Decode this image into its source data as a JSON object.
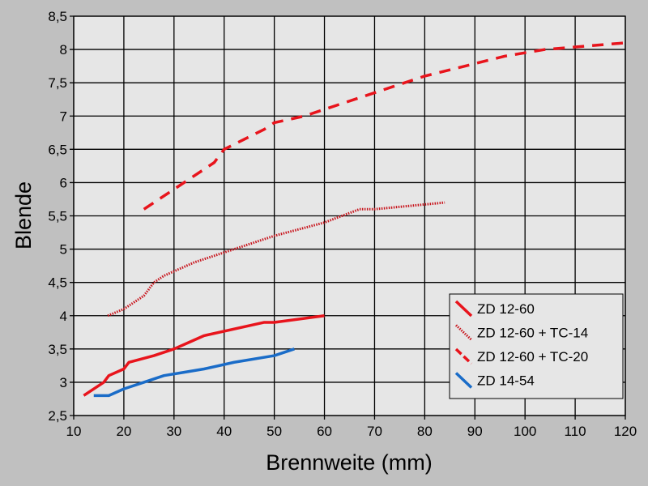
{
  "chart_data": {
    "type": "line",
    "title": "",
    "xlabel": "Brennweite (mm)",
    "ylabel": "Blende",
    "xlim": [
      10,
      120
    ],
    "ylim": [
      2.5,
      8.5
    ],
    "xticks": [
      "10",
      "20",
      "30",
      "40",
      "50",
      "60",
      "70",
      "80",
      "90",
      "100",
      "110",
      "120"
    ],
    "yticks": [
      "2,5",
      "3",
      "3,5",
      "4",
      "4,5",
      "5",
      "5,5",
      "6",
      "6,5",
      "7",
      "7,5",
      "8",
      "8,5"
    ],
    "grid": true,
    "legend_position": "bottom-right",
    "series": [
      {
        "name": "ZD 12-60",
        "color": "#e8141c",
        "style": "solid",
        "x": [
          12,
          16,
          17,
          20,
          21,
          26,
          30,
          33,
          36,
          48,
          50,
          60
        ],
        "y": [
          2.8,
          3.0,
          3.1,
          3.2,
          3.3,
          3.4,
          3.5,
          3.6,
          3.7,
          3.9,
          3.9,
          4.0
        ]
      },
      {
        "name": "ZD 12-60 + TC-14",
        "color": "#c8141c",
        "style": "dotted",
        "x": [
          16.8,
          20,
          24,
          26,
          28,
          31,
          34,
          40,
          42,
          50,
          60,
          67,
          70,
          84
        ],
        "y": [
          4.0,
          4.1,
          4.3,
          4.5,
          4.6,
          4.7,
          4.8,
          4.95,
          5.0,
          5.2,
          5.4,
          5.6,
          5.6,
          5.7
        ]
      },
      {
        "name": "ZD 12-60 + TC-20",
        "color": "#e8141c",
        "style": "dashed",
        "x": [
          24,
          34,
          38,
          40,
          48,
          50,
          56,
          60,
          80,
          96,
          100,
          104,
          120
        ],
        "y": [
          5.6,
          6.1,
          6.3,
          6.5,
          6.8,
          6.9,
          7.0,
          7.1,
          7.6,
          7.9,
          7.95,
          8.0,
          8.1
        ]
      },
      {
        "name": "ZD 14-54",
        "color": "#1a6cc8",
        "style": "solid",
        "x": [
          14,
          17,
          20,
          24,
          28,
          32,
          36,
          42,
          50,
          54
        ],
        "y": [
          2.8,
          2.8,
          2.9,
          3.0,
          3.1,
          3.15,
          3.2,
          3.3,
          3.4,
          3.5
        ]
      }
    ]
  }
}
